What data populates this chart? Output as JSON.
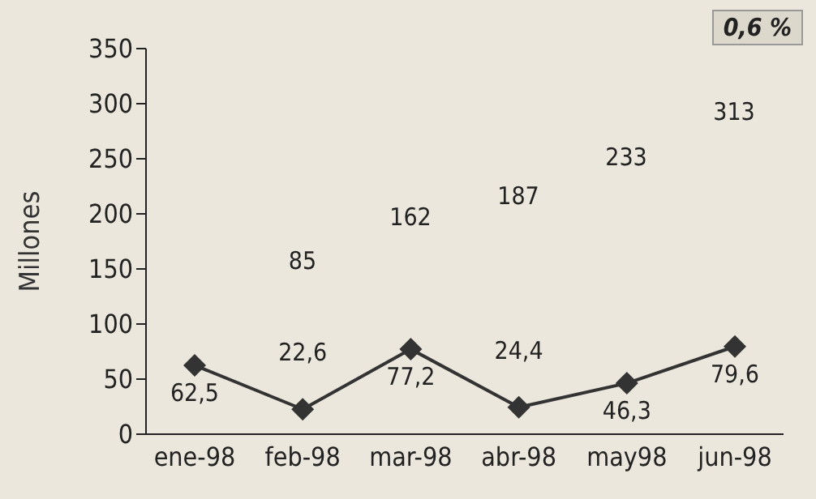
{
  "chart_data": {
    "type": "line",
    "ylabel": "Millones",
    "categories": [
      "ene-98",
      "feb-98",
      "mar-98",
      "abr-98",
      "may98",
      "jun-98"
    ],
    "series": [
      {
        "color": "#333333",
        "values": [
          62.5,
          22.6,
          77.2,
          24.4,
          46.3,
          79.6
        ],
        "value_labels": [
          "62,5",
          "22,6",
          "77,2",
          "24,4",
          "46,3",
          "79,6"
        ]
      }
    ],
    "ylim": [
      0,
      350
    ],
    "yticks": [
      0,
      50,
      100,
      150,
      200,
      250,
      300,
      350
    ],
    "grid": false,
    "legend": false,
    "marker": "diamond",
    "line_style": "solid",
    "annotations": [
      "85",
      "162",
      "187",
      "233",
      "313",
      "0,6 %"
    ]
  }
}
